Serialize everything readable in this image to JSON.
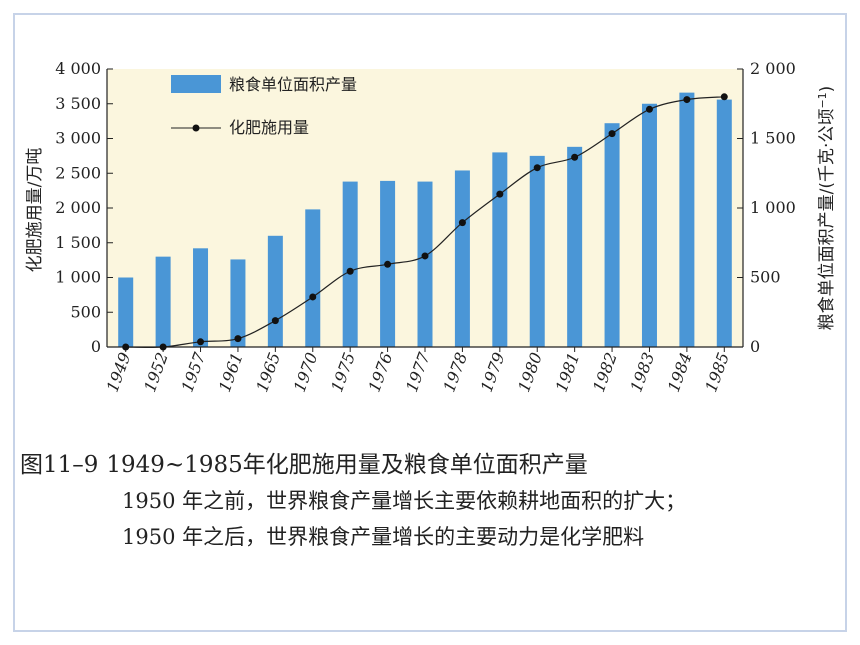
{
  "figure": {
    "number": "图11–9",
    "title": "1949~1985年化肥施用量及粮食单位面积产量",
    "notes": [
      "1950 年之前，世界粮食产量增长主要依赖耕地面积的扩大；",
      "1950 年之后，世界粮食产量增长的主要动力是化学肥料"
    ]
  },
  "colors": {
    "bar": "#4a96d6",
    "line": "#222222",
    "plot_bg": "#fbf6de",
    "frame": "#c7d3e8"
  },
  "chart_data": {
    "type": "bar",
    "categories": [
      "1949",
      "1952",
      "1957",
      "1961",
      "1965",
      "1970",
      "1975",
      "1976",
      "1977",
      "1978",
      "1979",
      "1980",
      "1981",
      "1982",
      "1983",
      "1984",
      "1985"
    ],
    "y_left": {
      "label": "化肥施用量/万吨",
      "range": [
        0,
        4000
      ],
      "ticks": [
        0,
        500,
        1000,
        1500,
        2000,
        2500,
        3000,
        3500,
        4000
      ],
      "tick_labels": [
        "0",
        "500",
        "1 000",
        "1 500",
        "2 000",
        "2 500",
        "3 000",
        "3 500",
        "4 000"
      ]
    },
    "y_right": {
      "label": "粮食单位面积产量/(千克·公顷",
      "label_sup": "−1",
      "label_end": ")",
      "range": [
        0,
        2000
      ],
      "ticks": [
        0,
        500,
        1000,
        1500,
        2000
      ],
      "tick_labels": [
        "0",
        "500",
        "1 000",
        "1 500",
        "2 000"
      ]
    },
    "series": [
      {
        "name": "粮食单位面积产量",
        "type": "bar",
        "axis": "right",
        "values": [
          500,
          650,
          710,
          630,
          800,
          990,
          1190,
          1195,
          1190,
          1270,
          1400,
          1375,
          1440,
          1610,
          1750,
          1830,
          1780
        ]
      },
      {
        "name": "化肥施用量",
        "type": "line",
        "axis": "left",
        "values": [
          0,
          0,
          75,
          120,
          380,
          720,
          1090,
          1190,
          1310,
          1790,
          2200,
          2580,
          2730,
          3070,
          3420,
          3560,
          3600
        ]
      }
    ],
    "legend_position": "top-left",
    "grid": false
  }
}
